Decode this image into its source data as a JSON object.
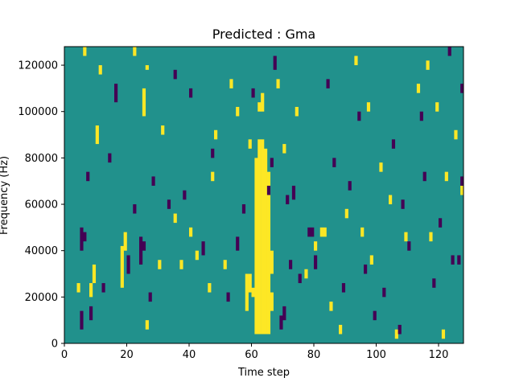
{
  "chart_data": {
    "type": "heatmap",
    "title": "Predicted : Gma",
    "xlabel": "Time step",
    "ylabel": "Frequency (Hz)",
    "xlim": [
      0,
      128
    ],
    "ylim": [
      0,
      128000
    ],
    "xticks": [
      {
        "value": 0,
        "label": "0"
      },
      {
        "value": 20,
        "label": "20"
      },
      {
        "value": 40,
        "label": "40"
      },
      {
        "value": 60,
        "label": "60"
      },
      {
        "value": 80,
        "label": "80"
      },
      {
        "value": 100,
        "label": "100"
      },
      {
        "value": 120,
        "label": "120"
      }
    ],
    "yticks": [
      {
        "value": 0,
        "label": "0"
      },
      {
        "value": 20000,
        "label": "20000"
      },
      {
        "value": 40000,
        "label": "40000"
      },
      {
        "value": 60000,
        "label": "60000"
      },
      {
        "value": 80000,
        "label": "80000"
      },
      {
        "value": 100000,
        "label": "100000"
      },
      {
        "value": 120000,
        "label": "120000"
      }
    ],
    "colormap": "viridis",
    "classes": [
      {
        "value": 0,
        "color": "#440154"
      },
      {
        "value": 1,
        "color": "#21918c"
      },
      {
        "value": 2,
        "color": "#fde725"
      }
    ],
    "background_value": 1,
    "bin_height_hz": 2000,
    "cells": [
      [
        62,
        4000,
        88000,
        2
      ],
      [
        63,
        4000,
        88000,
        2
      ],
      [
        64,
        4000,
        84000,
        2
      ],
      [
        65,
        4000,
        74000,
        2
      ],
      [
        60,
        20000,
        24000,
        2
      ],
      [
        61,
        4000,
        80000,
        2
      ],
      [
        66,
        14000,
        22000,
        2
      ],
      [
        66,
        30000,
        40000,
        2
      ],
      [
        59,
        22000,
        30000,
        2
      ],
      [
        58,
        14000,
        30000,
        2
      ],
      [
        62,
        100000,
        104000,
        2
      ],
      [
        63,
        100000,
        108000,
        2
      ],
      [
        82,
        46000,
        50000,
        2
      ],
      [
        83,
        46000,
        50000,
        2
      ],
      [
        25,
        98000,
        110000,
        2
      ],
      [
        18,
        24000,
        42000,
        2
      ],
      [
        19,
        40000,
        48000,
        2
      ],
      [
        8,
        20000,
        26000,
        2
      ],
      [
        9,
        26000,
        34000,
        2
      ],
      [
        10,
        86000,
        94000,
        2
      ],
      [
        4,
        22000,
        26000,
        2
      ],
      [
        6,
        124000,
        128000,
        2
      ],
      [
        11,
        116000,
        120000,
        2
      ],
      [
        22,
        124000,
        128000,
        2
      ],
      [
        26,
        118000,
        120000,
        2
      ],
      [
        26,
        6000,
        10000,
        2
      ],
      [
        30,
        32000,
        36000,
        2
      ],
      [
        31,
        90000,
        94000,
        2
      ],
      [
        35,
        52000,
        56000,
        2
      ],
      [
        37,
        32000,
        36000,
        2
      ],
      [
        40,
        46000,
        50000,
        2
      ],
      [
        42,
        36000,
        40000,
        2
      ],
      [
        46,
        22000,
        26000,
        2
      ],
      [
        47,
        70000,
        74000,
        2
      ],
      [
        48,
        88000,
        92000,
        2
      ],
      [
        51,
        32000,
        36000,
        2
      ],
      [
        53,
        110000,
        114000,
        2
      ],
      [
        55,
        98000,
        102000,
        2
      ],
      [
        59,
        84000,
        88000,
        2
      ],
      [
        68,
        110000,
        114000,
        2
      ],
      [
        70,
        82000,
        86000,
        2
      ],
      [
        74,
        98000,
        102000,
        2
      ],
      [
        77,
        28000,
        32000,
        2
      ],
      [
        80,
        40000,
        44000,
        2
      ],
      [
        85,
        14000,
        18000,
        2
      ],
      [
        88,
        4000,
        8000,
        2
      ],
      [
        90,
        54000,
        58000,
        2
      ],
      [
        93,
        120000,
        124000,
        2
      ],
      [
        95,
        46000,
        50000,
        2
      ],
      [
        97,
        100000,
        104000,
        2
      ],
      [
        98,
        34000,
        38000,
        2
      ],
      [
        101,
        74000,
        78000,
        2
      ],
      [
        104,
        60000,
        64000,
        2
      ],
      [
        106,
        2000,
        6000,
        2
      ],
      [
        109,
        44000,
        48000,
        2
      ],
      [
        113,
        108000,
        112000,
        2
      ],
      [
        116,
        118000,
        122000,
        2
      ],
      [
        117,
        44000,
        48000,
        2
      ],
      [
        119,
        100000,
        104000,
        2
      ],
      [
        121,
        2000,
        6000,
        2
      ],
      [
        122,
        70000,
        74000,
        2
      ],
      [
        125,
        88000,
        92000,
        2
      ],
      [
        127,
        64000,
        68000,
        2
      ],
      [
        5,
        6000,
        14000,
        0
      ],
      [
        6,
        44000,
        48000,
        0
      ],
      [
        5,
        40000,
        50000,
        0
      ],
      [
        7,
        70000,
        74000,
        0
      ],
      [
        8,
        10000,
        16000,
        0
      ],
      [
        12,
        22000,
        26000,
        0
      ],
      [
        14,
        78000,
        82000,
        0
      ],
      [
        16,
        104000,
        112000,
        0
      ],
      [
        20,
        30000,
        38000,
        0
      ],
      [
        22,
        56000,
        60000,
        0
      ],
      [
        24,
        34000,
        46000,
        0
      ],
      [
        25,
        40000,
        44000,
        0
      ],
      [
        27,
        18000,
        22000,
        0
      ],
      [
        28,
        68000,
        72000,
        0
      ],
      [
        33,
        58000,
        62000,
        0
      ],
      [
        35,
        114000,
        118000,
        0
      ],
      [
        38,
        62000,
        66000,
        0
      ],
      [
        40,
        106000,
        110000,
        0
      ],
      [
        44,
        38000,
        44000,
        0
      ],
      [
        47,
        80000,
        84000,
        0
      ],
      [
        52,
        18000,
        22000,
        0
      ],
      [
        55,
        40000,
        46000,
        0
      ],
      [
        57,
        56000,
        60000,
        0
      ],
      [
        60,
        106000,
        110000,
        0
      ],
      [
        65,
        64000,
        68000,
        0
      ],
      [
        66,
        76000,
        80000,
        0
      ],
      [
        67,
        118000,
        124000,
        0
      ],
      [
        69,
        6000,
        12000,
        0
      ],
      [
        70,
        10000,
        16000,
        0
      ],
      [
        71,
        60000,
        64000,
        0
      ],
      [
        72,
        32000,
        36000,
        0
      ],
      [
        73,
        62000,
        68000,
        0
      ],
      [
        75,
        26000,
        30000,
        0
      ],
      [
        78,
        46000,
        50000,
        0
      ],
      [
        79,
        46000,
        50000,
        0
      ],
      [
        80,
        32000,
        38000,
        0
      ],
      [
        84,
        110000,
        114000,
        0
      ],
      [
        86,
        76000,
        80000,
        0
      ],
      [
        89,
        22000,
        26000,
        0
      ],
      [
        91,
        66000,
        70000,
        0
      ],
      [
        94,
        96000,
        100000,
        0
      ],
      [
        96,
        30000,
        34000,
        0
      ],
      [
        99,
        10000,
        14000,
        0
      ],
      [
        102,
        20000,
        24000,
        0
      ],
      [
        105,
        84000,
        88000,
        0
      ],
      [
        107,
        4000,
        8000,
        0
      ],
      [
        108,
        58000,
        62000,
        0
      ],
      [
        110,
        40000,
        44000,
        0
      ],
      [
        114,
        96000,
        100000,
        0
      ],
      [
        115,
        70000,
        74000,
        0
      ],
      [
        118,
        24000,
        28000,
        0
      ],
      [
        120,
        50000,
        54000,
        0
      ],
      [
        123,
        124000,
        128000,
        0
      ],
      [
        124,
        34000,
        38000,
        0
      ],
      [
        126,
        34000,
        38000,
        0
      ],
      [
        127,
        68000,
        72000,
        0
      ],
      [
        127,
        108000,
        112000,
        0
      ]
    ]
  }
}
